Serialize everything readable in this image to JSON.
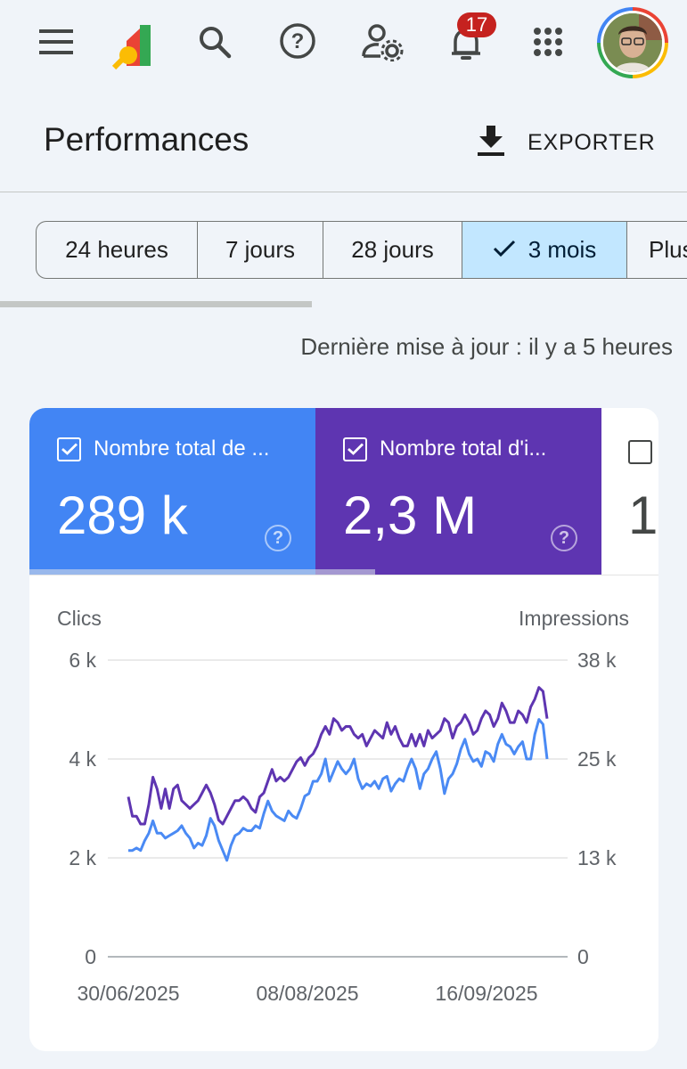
{
  "topbar": {
    "notifications_count": "17",
    "icons": [
      "menu-icon",
      "search-console-logo",
      "search-icon",
      "help-icon",
      "user-settings-icon",
      "notifications-icon",
      "apps-grid-icon",
      "avatar"
    ]
  },
  "header": {
    "title": "Performances",
    "export_label": "EXPORTER"
  },
  "date_range": {
    "options": [
      "24 heures",
      "7 jours",
      "28 jours",
      "3 mois",
      "Plus"
    ],
    "selected": "3 mois"
  },
  "last_update": "Dernière mise à jour : il y a 5 heures",
  "metrics": [
    {
      "label": "Nombre total de ...",
      "value": "289 k",
      "color": "#4285f4",
      "checked": true
    },
    {
      "label": "Nombre total d'i...",
      "value": "2,3 M",
      "color": "#5e35b1",
      "checked": true
    },
    {
      "label": "",
      "value": "1",
      "color": "#ffffff",
      "checked": false
    }
  ],
  "chart_data": {
    "type": "line",
    "left_axis_label": "Clics",
    "right_axis_label": "Impressions",
    "left_ticks": [
      "0",
      "2 k",
      "4 k",
      "6 k"
    ],
    "right_ticks": [
      "0",
      "13 k",
      "25 k",
      "38 k"
    ],
    "left_ylim": [
      0,
      6000
    ],
    "right_ylim": [
      0,
      38000
    ],
    "x_tick_labels": [
      "30/06/2025",
      "08/08/2025",
      "16/09/2025"
    ],
    "series": [
      {
        "name": "Clics",
        "axis": "left",
        "color": "#4a8af4",
        "values": [
          2150,
          2150,
          2200,
          2150,
          2350,
          2500,
          2750,
          2500,
          2500,
          2400,
          2450,
          2500,
          2550,
          2650,
          2500,
          2400,
          2200,
          2300,
          2250,
          2450,
          2800,
          2650,
          2350,
          2150,
          1950,
          2250,
          2450,
          2500,
          2600,
          2550,
          2550,
          2650,
          2600,
          2900,
          3150,
          2950,
          2850,
          2800,
          2750,
          2950,
          2850,
          2800,
          3000,
          3250,
          3300,
          3550,
          3550,
          3700,
          4000,
          3550,
          3750,
          3950,
          3800,
          3700,
          3800,
          4000,
          3600,
          3400,
          3500,
          3450,
          3550,
          3400,
          3600,
          3650,
          3350,
          3500,
          3600,
          3550,
          3800,
          4000,
          3800,
          3400,
          3700,
          3800,
          4000,
          4150,
          3800,
          3300,
          3600,
          3700,
          3900,
          4200,
          4400,
          4100,
          3950,
          4000,
          3850,
          4150,
          4100,
          3950,
          4300,
          4500,
          4300,
          4250,
          4100,
          4250,
          4350,
          4000,
          4000,
          4500,
          4800,
          4700,
          4000
        ]
      },
      {
        "name": "Impressions",
        "axis": "right",
        "color": "#5e35b1",
        "values": [
          20500,
          18000,
          18000,
          17000,
          17000,
          19500,
          23000,
          21500,
          19000,
          21500,
          19000,
          21500,
          22000,
          20000,
          19500,
          19000,
          19500,
          20000,
          21000,
          22000,
          21000,
          19500,
          17500,
          17000,
          18000,
          19000,
          20000,
          20000,
          20500,
          20000,
          19000,
          18500,
          20500,
          21000,
          22500,
          24000,
          22500,
          23000,
          22500,
          23000,
          24000,
          25000,
          25500,
          24500,
          25500,
          26000,
          27000,
          28500,
          29500,
          28500,
          30500,
          30000,
          29000,
          29500,
          29500,
          28500,
          28000,
          28500,
          27000,
          28000,
          29000,
          28500,
          28000,
          30000,
          28500,
          29500,
          28000,
          27000,
          27000,
          28500,
          27000,
          28500,
          27000,
          29000,
          28000,
          28500,
          29000,
          30500,
          30000,
          28000,
          29500,
          30000,
          31000,
          30000,
          28500,
          29000,
          30500,
          31500,
          31000,
          29500,
          30500,
          32500,
          31500,
          30000,
          30000,
          31500,
          31000,
          30000,
          32000,
          33000,
          34500,
          34000,
          30500
        ]
      }
    ]
  }
}
